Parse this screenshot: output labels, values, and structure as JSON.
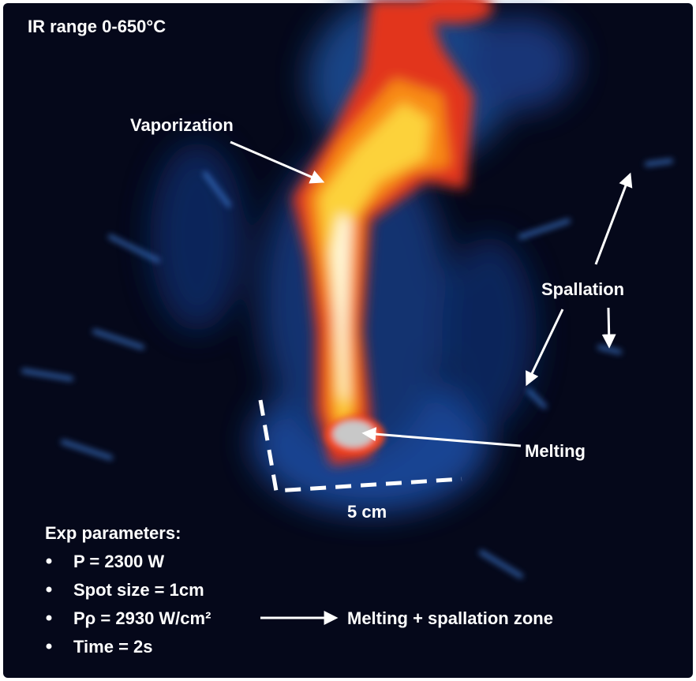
{
  "title": "IR range 0-650°C",
  "annotations": {
    "vaporization": "Vaporization",
    "spallation": "Spallation",
    "melting": "Melting",
    "scale": "5 cm",
    "zone": "Melting + spallation zone"
  },
  "parameters": {
    "heading": "Exp parameters:",
    "items": [
      "P = 2300 W",
      "Spot size = 1cm",
      "Pρ = 2930 W/cm²",
      "Time = 2s"
    ]
  }
}
